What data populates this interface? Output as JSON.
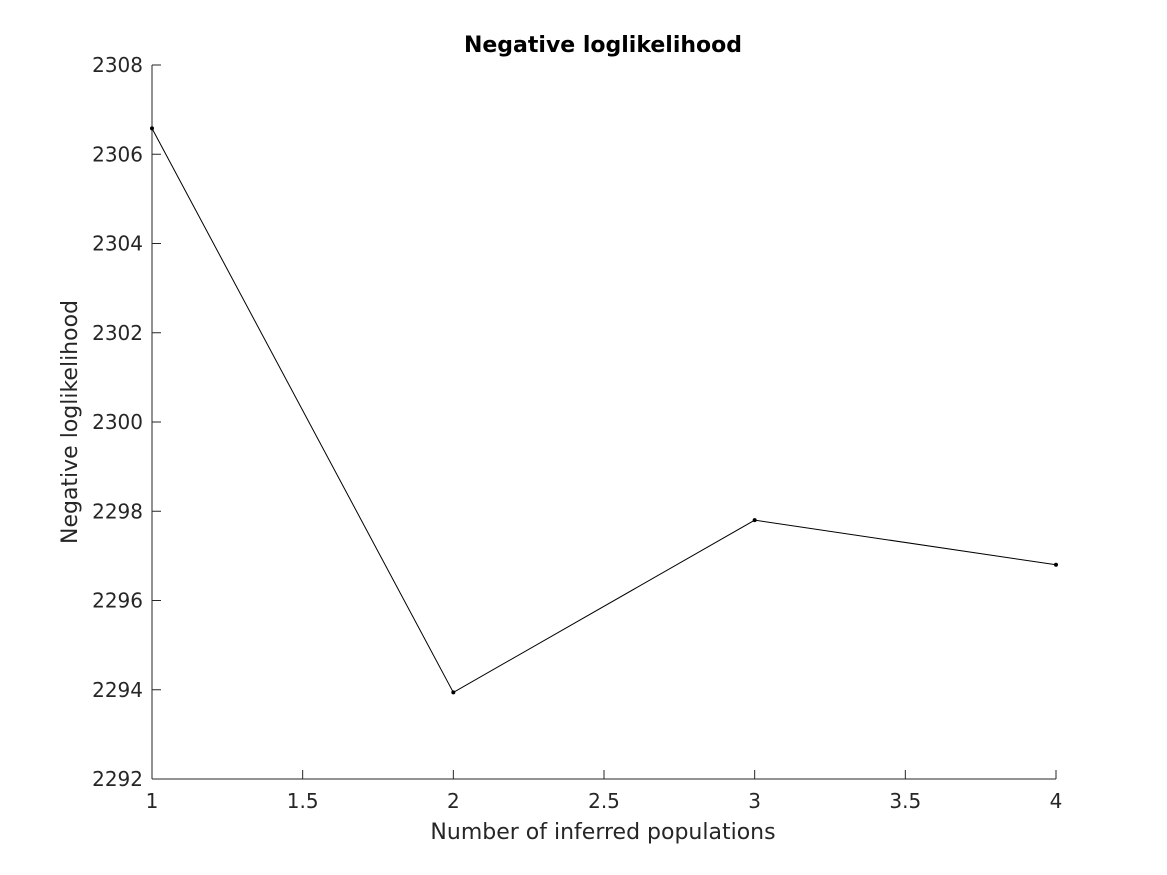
{
  "chart_data": {
    "type": "line",
    "title": "Negative loglikelihood",
    "xlabel": "Number of inferred populations",
    "ylabel": "Negative loglikelihood",
    "x": [
      1,
      2,
      3,
      4
    ],
    "series": [
      {
        "values": [
          2306.58,
          2293.94,
          2297.8,
          2296.8
        ]
      }
    ],
    "xlim": [
      1,
      4
    ],
    "ylim": [
      2292,
      2308
    ],
    "xticks": [
      1,
      1.5,
      2,
      2.5,
      3,
      3.5,
      4
    ],
    "xtick_labels": [
      "1",
      "1.5",
      "2",
      "2.5",
      "3",
      "3.5",
      "4"
    ],
    "yticks": [
      2292,
      2294,
      2296,
      2298,
      2300,
      2302,
      2304,
      2306,
      2308
    ],
    "ytick_labels": [
      "2292",
      "2294",
      "2296",
      "2298",
      "2300",
      "2302",
      "2304",
      "2306",
      "2308"
    ],
    "grid": false,
    "legend": "none",
    "line_color": "#000000",
    "axis_color": "#262626"
  }
}
